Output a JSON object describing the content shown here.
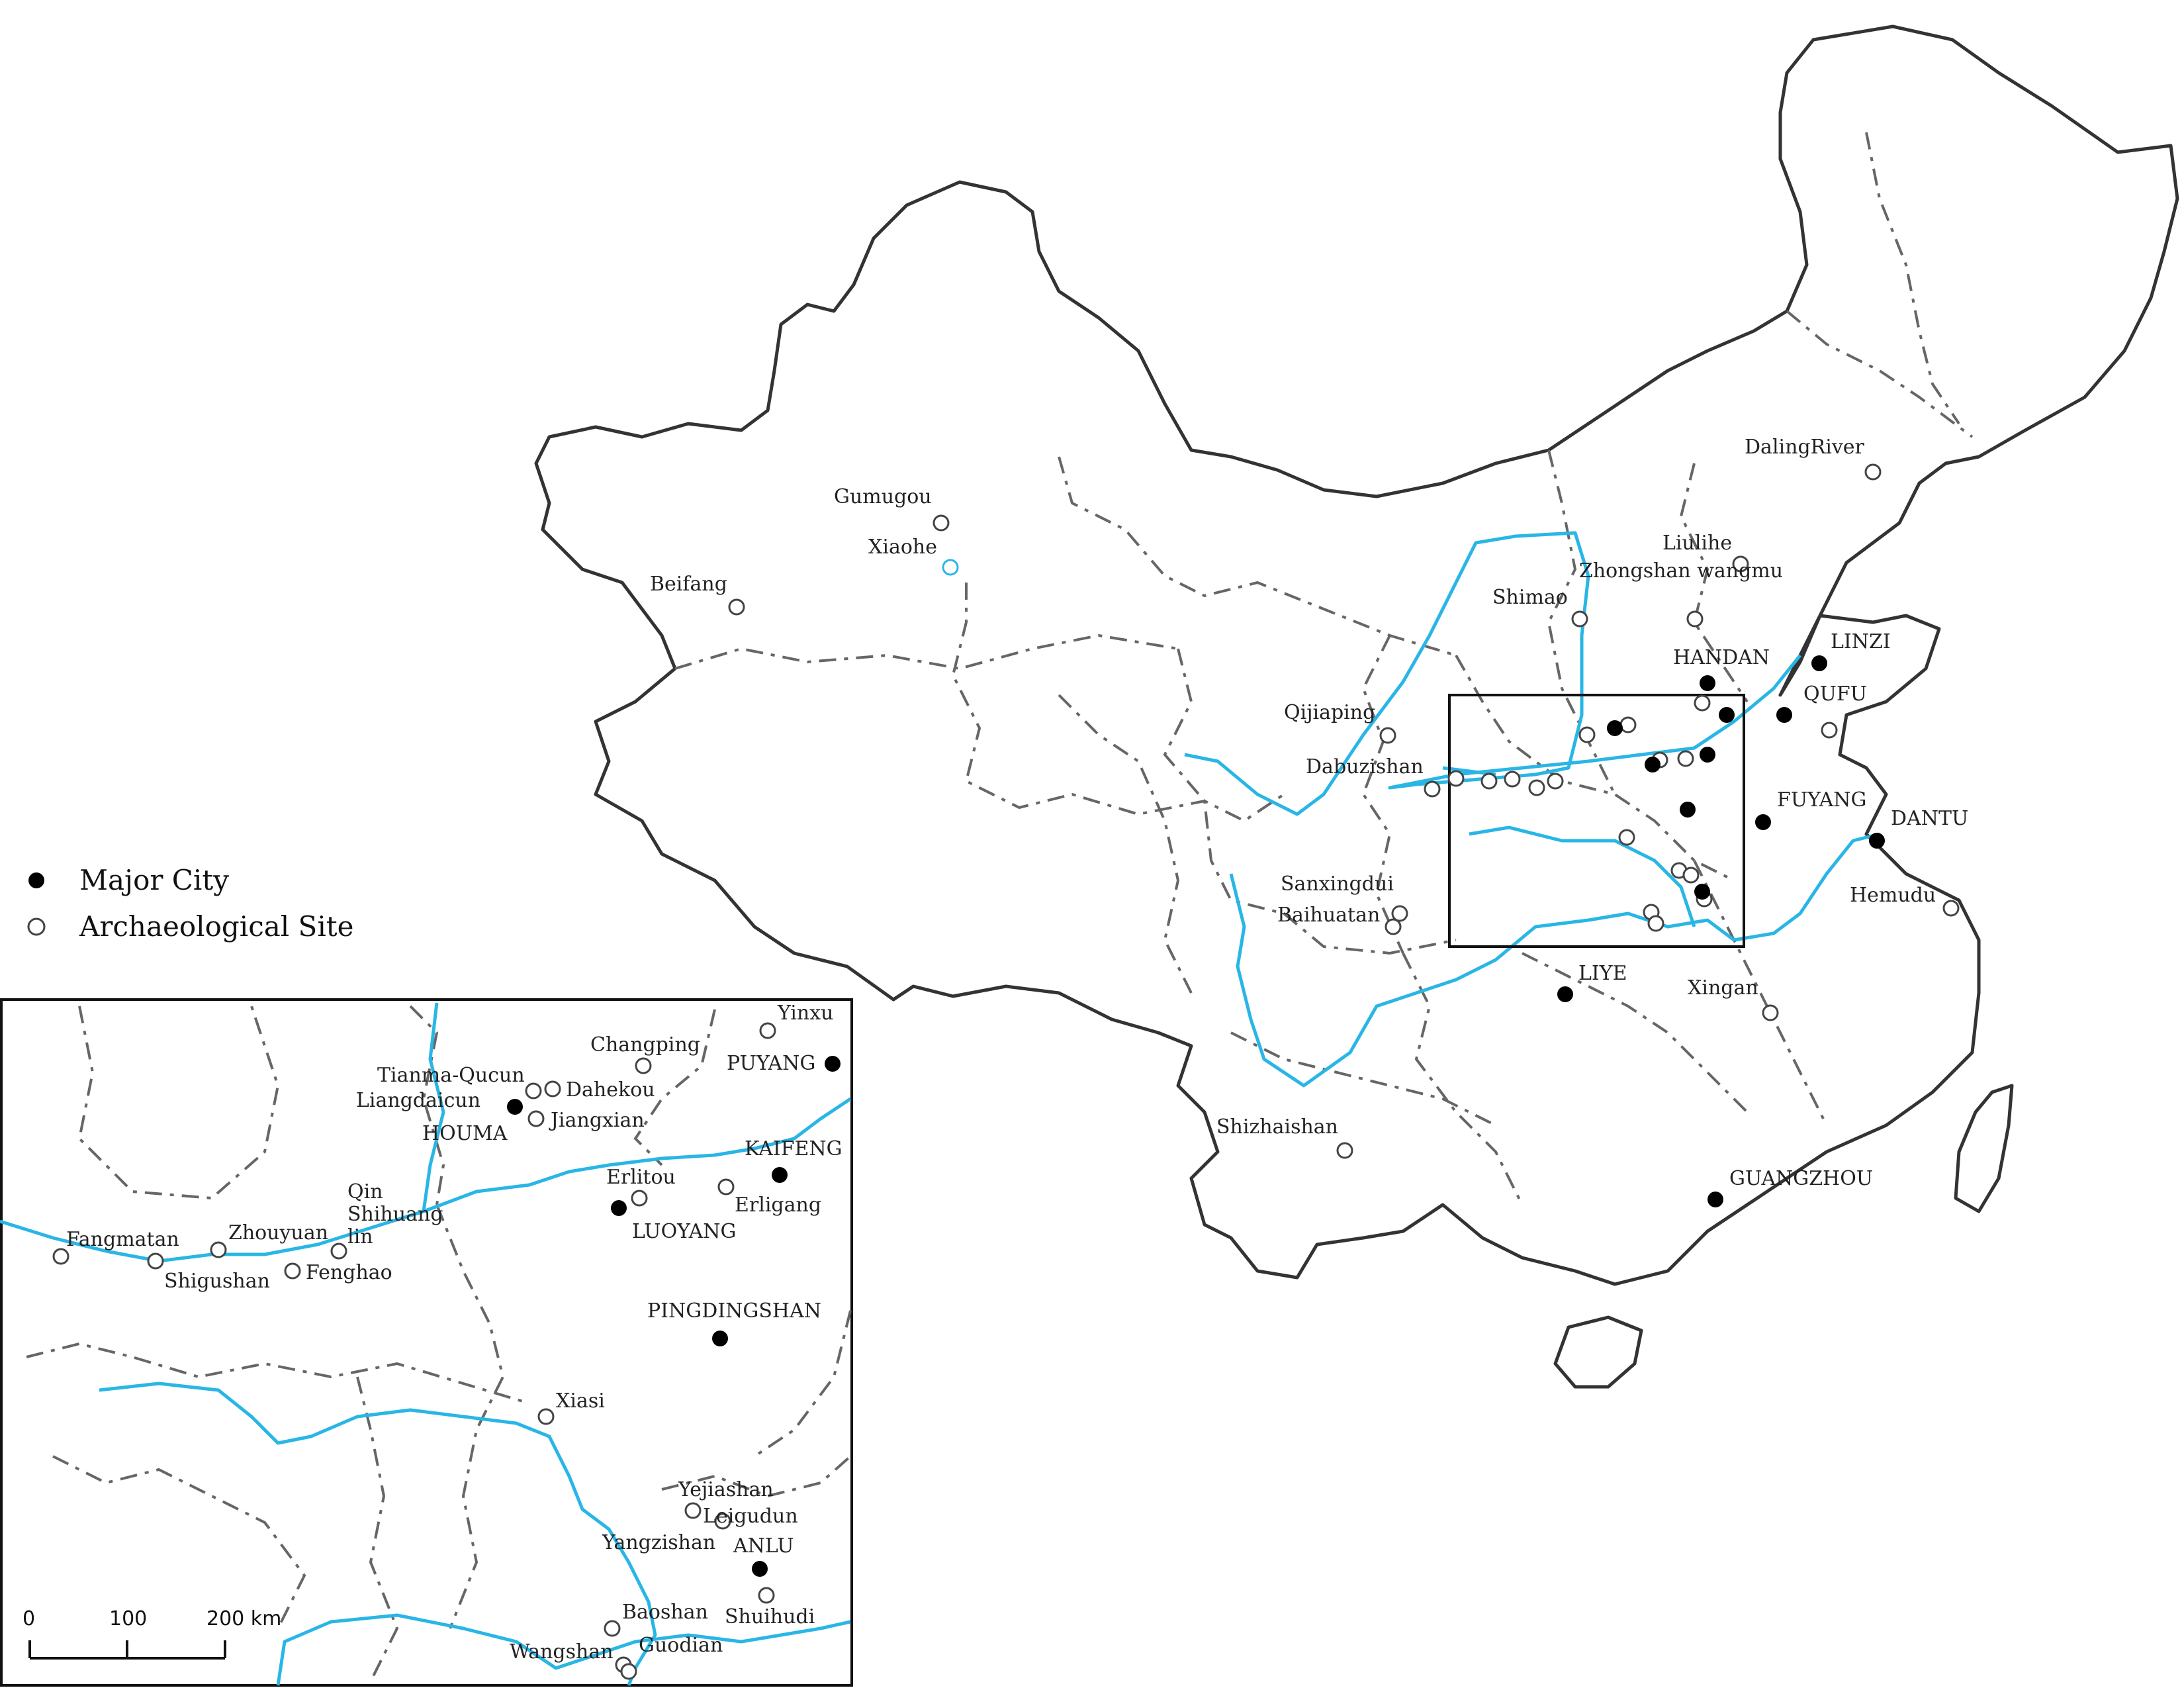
{
  "legend": {
    "major_city": "Major City",
    "archaeological_site": "Archaeological Site"
  },
  "colors": {
    "river": "#29b6e6",
    "border": "#333333",
    "provincial_border": "#666666",
    "city_marker": "#000000",
    "site_marker_stroke": "#444444"
  },
  "icons": {
    "city": "filled-circle-icon",
    "site": "open-circle-icon"
  },
  "main_map": {
    "cities": [
      "HANDAN",
      "LINZI",
      "QUFU",
      "FUYANG",
      "DANTU",
      "LIYE",
      "GUANGZHOU"
    ],
    "sites": [
      "Gumugou",
      "Xiaohe",
      "Beifang",
      "DalingRiver",
      "Liulihe",
      "Shimao",
      "Zhongshan wangmu",
      "Qijiaping",
      "Dabuzishan",
      "Sanxingdui",
      "Baihuatan",
      "Hemudu",
      "Xingan",
      "Shizhaishan"
    ]
  },
  "inset": {
    "cities": [
      "PUYANG",
      "HOUMA",
      "KAIFENG",
      "LUOYANG",
      "PINGDINGSHAN",
      "ANLU"
    ],
    "sites": [
      "Yinxu",
      "Changping",
      "Tianma-Qucun",
      "Dahekou",
      "Liangdaicun",
      "Jiangxian",
      "Erlitou",
      "Erligang",
      "Qin Shihuang lin",
      "Fangmatan",
      "Zhouyuan",
      "Shigushan",
      "Fenghao",
      "Xiasi",
      "Yejiashan",
      "Leigudun",
      "Yangzishan",
      "Baoshan",
      "Shuihudi",
      "Wangshan",
      "Guodian"
    ]
  },
  "scale_bar": {
    "ticks": [
      "0",
      "100",
      "200 km"
    ]
  }
}
